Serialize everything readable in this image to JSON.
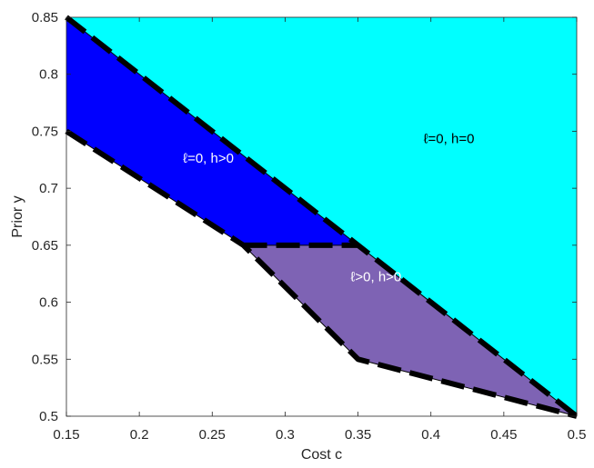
{
  "chart_data": {
    "type": "area",
    "xlabel": "Cost c",
    "ylabel": "Prior y",
    "xlim": [
      0.15,
      0.5
    ],
    "ylim": [
      0.5,
      0.85
    ],
    "xticks": [
      "0.15",
      "0.2",
      "0.25",
      "0.3",
      "0.35",
      "0.4",
      "0.45",
      "0.5"
    ],
    "yticks": [
      "0.5",
      "0.55",
      "0.6",
      "0.65",
      "0.7",
      "0.75",
      "0.8",
      "0.85"
    ],
    "grid": false,
    "regions": [
      {
        "label": "ℓ=0, h=0",
        "color": "#00ffff",
        "text_color": "#000000",
        "label_at": [
          0.395,
          0.7395
        ],
        "polygon": [
          [
            0.15,
            0.85
          ],
          [
            0.5,
            0.85
          ],
          [
            0.5,
            0.5
          ]
        ]
      },
      {
        "label": "ℓ=0, h>0",
        "color": "#0000ff",
        "text_color": "#ffffff",
        "label_at": [
          0.23,
          0.7225
        ],
        "polygon": [
          [
            0.15,
            0.85
          ],
          [
            0.15,
            0.75
          ],
          [
            0.2714,
            0.65
          ],
          [
            0.35,
            0.65
          ]
        ]
      },
      {
        "label": "ℓ>0, h>0",
        "color": "#7e63b4",
        "text_color": "#ffffff",
        "label_at": [
          0.345,
          0.6185
        ],
        "polygon": [
          [
            0.2714,
            0.65
          ],
          [
            0.35,
            0.65
          ],
          [
            0.5,
            0.5
          ],
          [
            0.35,
            0.55
          ]
        ]
      }
    ],
    "boundaries": [
      {
        "name": "upper",
        "x": [
          0.15,
          0.5
        ],
        "y": [
          0.85,
          0.5
        ]
      },
      {
        "name": "lower",
        "x": [
          0.15,
          0.2714,
          0.35,
          0.5
        ],
        "y": [
          0.75,
          0.65,
          0.55,
          0.5
        ]
      },
      {
        "name": "middle",
        "x": [
          0.2714,
          0.35
        ],
        "y": [
          0.65,
          0.65
        ]
      }
    ]
  }
}
